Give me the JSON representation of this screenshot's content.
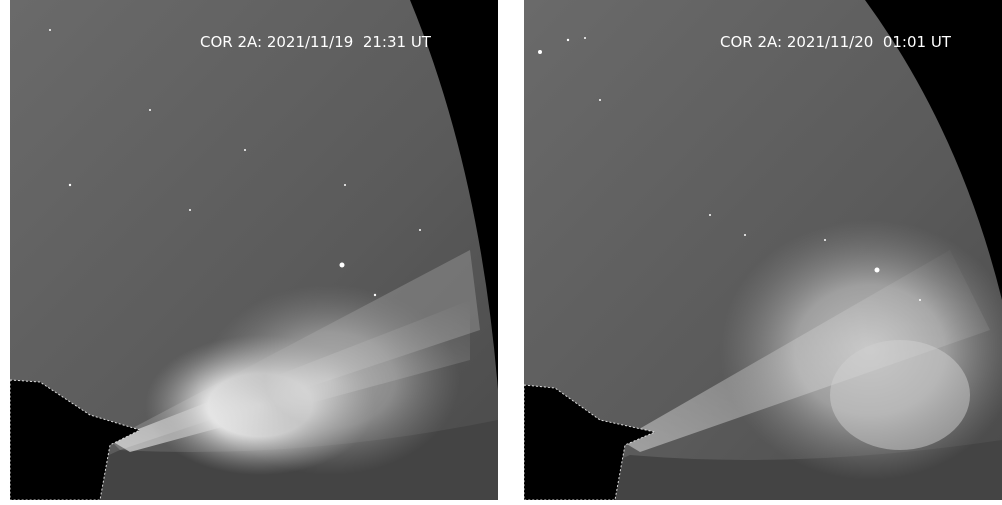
{
  "panels": [
    {
      "label": "COR 2A: 2021/11/19  21:31 UT"
    },
    {
      "label": "COR 2A: 2021/11/20  01:01 UT"
    }
  ]
}
